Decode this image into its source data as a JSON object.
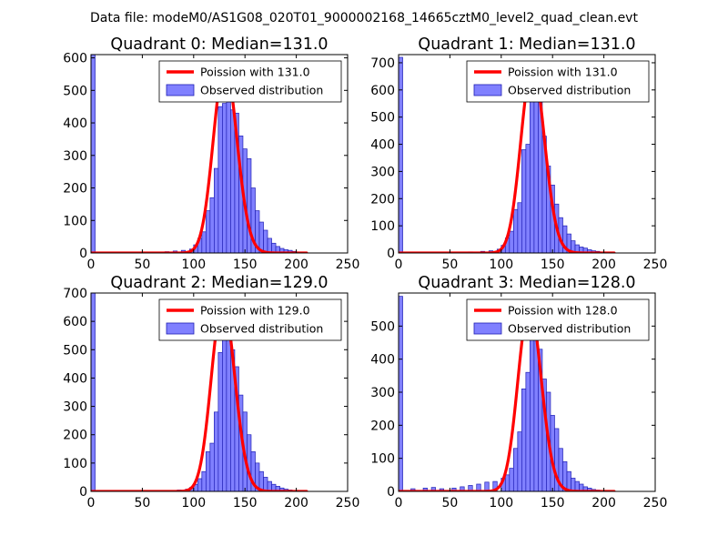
{
  "chart_data": {
    "suptitle": "Data file: modeM0/AS1G08_020T01_9000002168_14665cztM0_level2_quad_clean.evt",
    "colors": {
      "bar_fill": "#8080ff",
      "bar_edge": "#1f1fb4",
      "curve": "#ff0000",
      "curve_peak": "#f07878"
    },
    "panels": [
      {
        "type": "bar",
        "title": "Quadrant 0: Median=131.0",
        "median": 131.0,
        "xlim": [
          0,
          250
        ],
        "ylim": [
          0,
          610
        ],
        "xticks": [
          0,
          50,
          100,
          150,
          200,
          250
        ],
        "yticks": [
          0,
          100,
          200,
          300,
          400,
          500,
          600
        ],
        "legend_position": "upper-right",
        "legend": {
          "curve": "Poission with 131.0",
          "hist": "Observed distribution"
        },
        "curve_peak": 580,
        "bin_width": 4,
        "bins": [
          [
            0,
            610
          ],
          [
            60,
            3
          ],
          [
            72,
            4
          ],
          [
            80,
            6
          ],
          [
            88,
            8
          ],
          [
            96,
            12
          ],
          [
            100,
            25
          ],
          [
            104,
            45
          ],
          [
            108,
            65
          ],
          [
            112,
            130
          ],
          [
            116,
            170
          ],
          [
            120,
            260
          ],
          [
            124,
            450
          ],
          [
            128,
            460
          ],
          [
            132,
            500
          ],
          [
            136,
            440
          ],
          [
            140,
            430
          ],
          [
            144,
            360
          ],
          [
            148,
            320
          ],
          [
            152,
            290
          ],
          [
            156,
            200
          ],
          [
            160,
            130
          ],
          [
            164,
            95
          ],
          [
            168,
            70
          ],
          [
            172,
            45
          ],
          [
            176,
            30
          ],
          [
            180,
            20
          ],
          [
            184,
            14
          ],
          [
            188,
            10
          ],
          [
            192,
            8
          ],
          [
            196,
            5
          ],
          [
            200,
            3
          ],
          [
            204,
            2
          ]
        ]
      },
      {
        "type": "bar",
        "title": "Quadrant 1: Median=131.0",
        "median": 131.0,
        "xlim": [
          0,
          250
        ],
        "ylim": [
          0,
          730
        ],
        "xticks": [
          0,
          50,
          100,
          150,
          200,
          250
        ],
        "yticks": [
          0,
          100,
          200,
          300,
          400,
          500,
          600,
          700
        ],
        "legend_position": "upper-right",
        "legend": {
          "curve": "Poission with 131.0",
          "hist": "Observed distribution"
        },
        "curve_peak": 690,
        "bin_width": 4,
        "bins": [
          [
            0,
            720
          ],
          [
            68,
            4
          ],
          [
            80,
            6
          ],
          [
            88,
            8
          ],
          [
            96,
            14
          ],
          [
            100,
            28
          ],
          [
            104,
            55
          ],
          [
            108,
            80
          ],
          [
            112,
            160
          ],
          [
            116,
            185
          ],
          [
            120,
            380
          ],
          [
            124,
            400
          ],
          [
            128,
            560
          ],
          [
            132,
            560
          ],
          [
            136,
            590
          ],
          [
            140,
            430
          ],
          [
            144,
            320
          ],
          [
            148,
            250
          ],
          [
            152,
            180
          ],
          [
            156,
            130
          ],
          [
            160,
            100
          ],
          [
            164,
            70
          ],
          [
            168,
            45
          ],
          [
            172,
            30
          ],
          [
            176,
            22
          ],
          [
            180,
            18
          ],
          [
            184,
            12
          ],
          [
            188,
            8
          ],
          [
            192,
            6
          ]
        ]
      },
      {
        "type": "bar",
        "title": "Quadrant 2: Median=129.0",
        "median": 129.0,
        "xlim": [
          0,
          250
        ],
        "ylim": [
          0,
          700
        ],
        "xticks": [
          0,
          50,
          100,
          150,
          200,
          250
        ],
        "yticks": [
          0,
          100,
          200,
          300,
          400,
          500,
          600,
          700
        ],
        "legend_position": "upper-right",
        "legend": {
          "curve": "Poission with 129.0",
          "hist": "Observed distribution"
        },
        "curve_peak": 670,
        "bin_width": 4,
        "bins": [
          [
            0,
            700
          ],
          [
            76,
            3
          ],
          [
            84,
            5
          ],
          [
            92,
            8
          ],
          [
            96,
            14
          ],
          [
            100,
            25
          ],
          [
            104,
            45
          ],
          [
            108,
            70
          ],
          [
            112,
            140
          ],
          [
            116,
            170
          ],
          [
            120,
            280
          ],
          [
            124,
            490
          ],
          [
            128,
            600
          ],
          [
            132,
            640
          ],
          [
            136,
            500
          ],
          [
            140,
            440
          ],
          [
            144,
            340
          ],
          [
            148,
            280
          ],
          [
            152,
            200
          ],
          [
            156,
            140
          ],
          [
            160,
            100
          ],
          [
            164,
            70
          ],
          [
            168,
            50
          ],
          [
            172,
            35
          ],
          [
            176,
            25
          ],
          [
            180,
            18
          ],
          [
            184,
            12
          ],
          [
            188,
            8
          ],
          [
            192,
            5
          ]
        ]
      },
      {
        "type": "bar",
        "title": "Quadrant 3: Median=128.0",
        "median": 128.0,
        "xlim": [
          0,
          250
        ],
        "ylim": [
          0,
          600
        ],
        "xticks": [
          0,
          50,
          100,
          150,
          200,
          250
        ],
        "yticks": [
          0,
          100,
          200,
          300,
          400,
          500
        ],
        "legend_position": "upper-right",
        "legend": {
          "curve": "Poission with 128.0",
          "hist": "Observed distribution"
        },
        "curve_peak": 560,
        "bin_width": 4,
        "bins": [
          [
            0,
            590
          ],
          [
            12,
            8
          ],
          [
            24,
            10
          ],
          [
            32,
            12
          ],
          [
            40,
            8
          ],
          [
            52,
            10
          ],
          [
            60,
            14
          ],
          [
            68,
            18
          ],
          [
            76,
            22
          ],
          [
            84,
            28
          ],
          [
            92,
            30
          ],
          [
            100,
            40
          ],
          [
            104,
            50
          ],
          [
            108,
            70
          ],
          [
            112,
            130
          ],
          [
            116,
            180
          ],
          [
            120,
            310
          ],
          [
            124,
            360
          ],
          [
            128,
            490
          ],
          [
            132,
            500
          ],
          [
            136,
            430
          ],
          [
            140,
            340
          ],
          [
            144,
            300
          ],
          [
            148,
            230
          ],
          [
            152,
            190
          ],
          [
            156,
            130
          ],
          [
            160,
            90
          ],
          [
            164,
            60
          ],
          [
            168,
            40
          ],
          [
            172,
            30
          ],
          [
            176,
            22
          ],
          [
            180,
            14
          ],
          [
            184,
            10
          ],
          [
            188,
            6
          ],
          [
            192,
            4
          ]
        ]
      }
    ]
  }
}
